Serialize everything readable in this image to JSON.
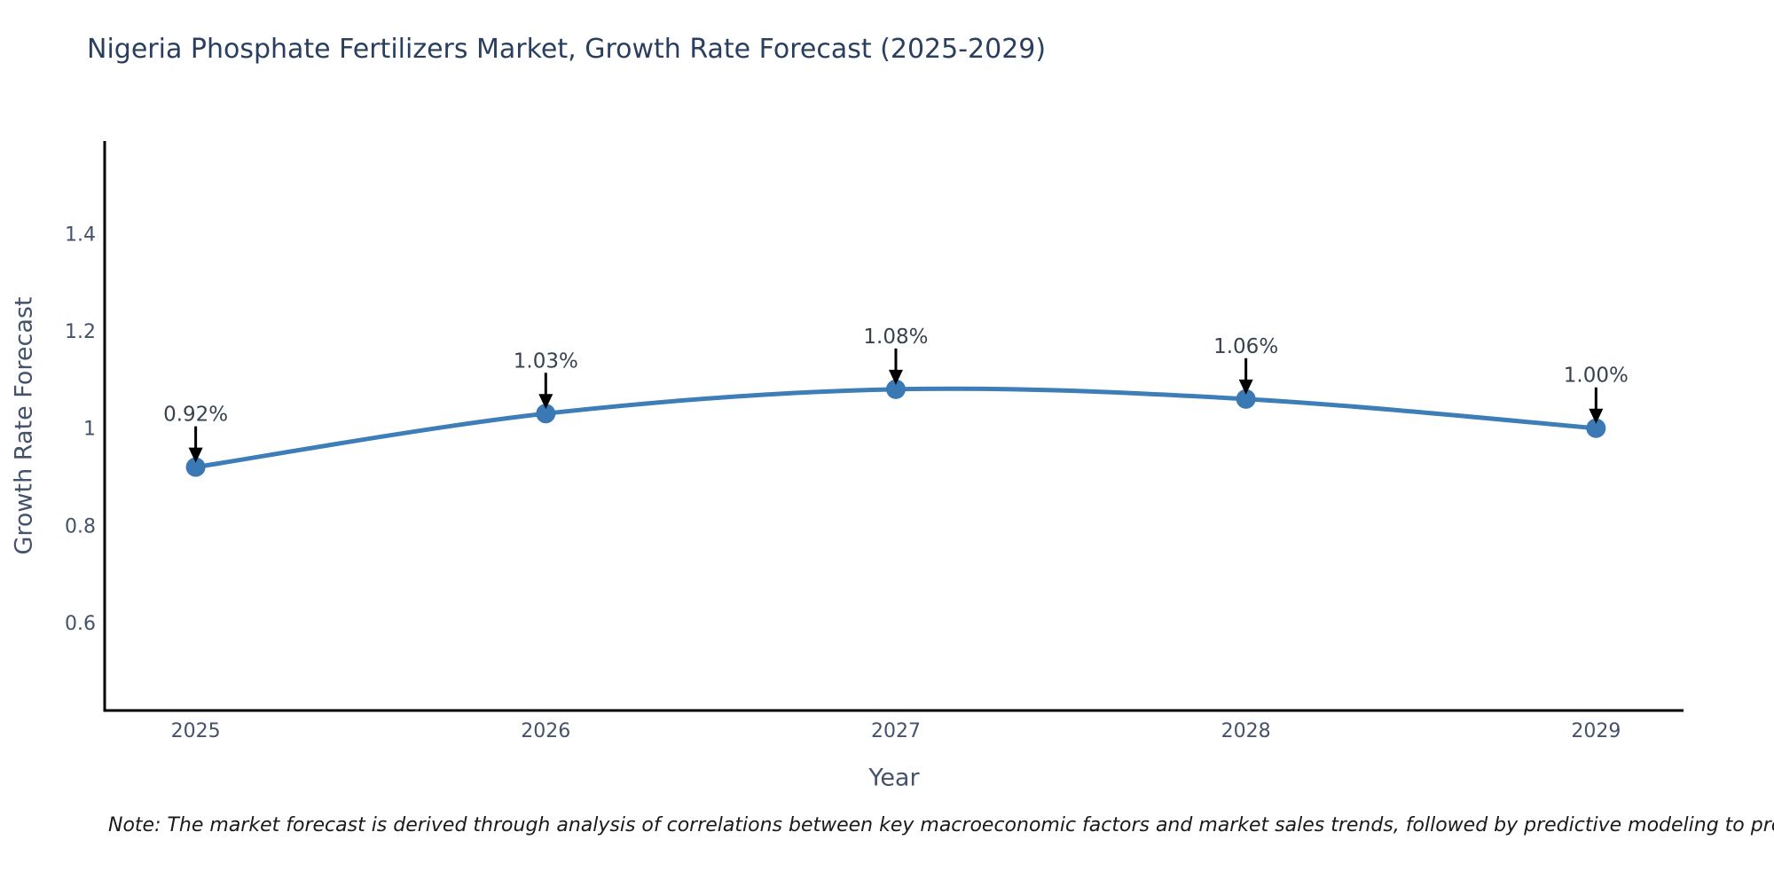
{
  "title": "Nigeria Phosphate Fertilizers Market, Growth Rate Forecast (2025-2029)",
  "note": "Note: The market forecast is derived through analysis of correlations between key macroeconomic factors and market sales trends, followed by predictive modeling to project future sales",
  "chart_data": {
    "type": "line",
    "title": "Nigeria Phosphate Fertilizers Market, Growth Rate Forecast (2025-2029)",
    "x": [
      2025,
      2026,
      2027,
      2028,
      2029
    ],
    "categories": [
      "2025",
      "2026",
      "2027",
      "2028",
      "2029"
    ],
    "values": [
      0.92,
      1.03,
      1.08,
      1.06,
      1.0
    ],
    "point_labels": [
      "0.92%",
      "1.03%",
      "1.08%",
      "1.06%",
      "1.00%"
    ],
    "xlabel": "Year",
    "ylabel": "Growth Rate Forecast",
    "yticks": [
      0.6,
      0.8,
      1,
      1.2,
      1.4
    ],
    "ytick_labels": [
      "0.6",
      "0.8",
      "1",
      "1.2",
      "1.4"
    ],
    "xlim": [
      2024.74,
      2029.25
    ],
    "ylim": [
      0.42,
      1.59
    ],
    "grid": false,
    "legend": false,
    "line_shape": "spline",
    "annotations": "arrow-down-to-point"
  },
  "style": {
    "line_color": "#3d7db8",
    "marker_color": "#3a79b3",
    "axis_color": "#000000",
    "title_color": "#2a3f5f",
    "tick_color": "#45526b",
    "annotation_color": "#38424f",
    "note_color": "#1a1a1a",
    "background": "#ffffff"
  }
}
